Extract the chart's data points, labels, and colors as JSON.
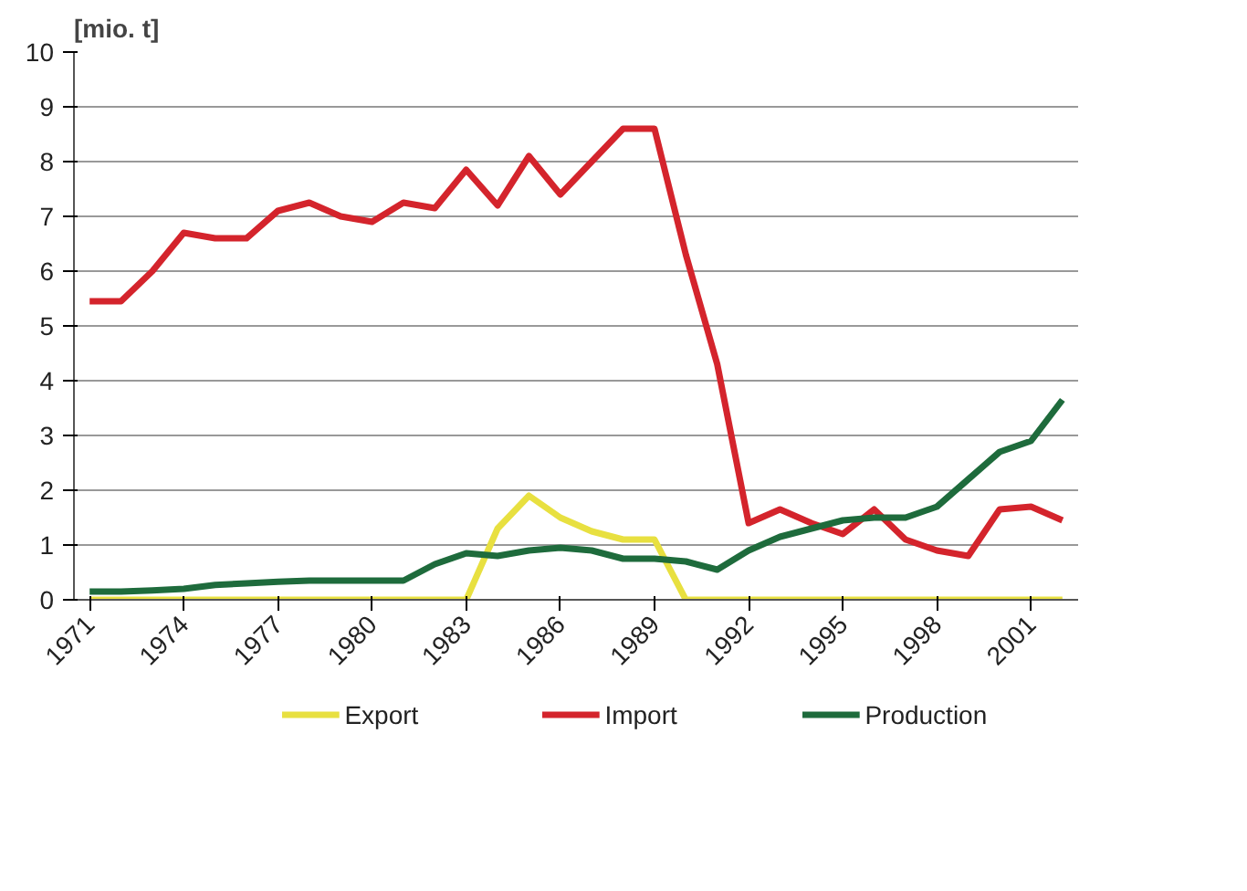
{
  "chart_data": {
    "type": "line",
    "ylabel": "[mio. t]",
    "x": [
      1971,
      1972,
      1973,
      1974,
      1975,
      1976,
      1977,
      1978,
      1979,
      1980,
      1981,
      1982,
      1983,
      1984,
      1985,
      1986,
      1987,
      1988,
      1989,
      1990,
      1991,
      1992,
      1993,
      1994,
      1995,
      1996,
      1997,
      1998,
      1999,
      2000,
      2001,
      2002
    ],
    "series": [
      {
        "name": "Export",
        "color": "#e8e040",
        "values": [
          0,
          0,
          0,
          0,
          0,
          0,
          0,
          0,
          0,
          0,
          0,
          0,
          0,
          1.3,
          1.9,
          1.5,
          1.25,
          1.1,
          1.1,
          0,
          0,
          0,
          0,
          0,
          0,
          0,
          0,
          0,
          0,
          0,
          0,
          0
        ]
      },
      {
        "name": "Import",
        "color": "#d4242c",
        "values": [
          5.45,
          5.45,
          6.0,
          6.7,
          6.6,
          6.6,
          7.1,
          7.25,
          7.0,
          6.9,
          7.25,
          7.15,
          7.85,
          7.2,
          8.1,
          7.4,
          8.0,
          8.6,
          8.6,
          6.3,
          4.3,
          1.4,
          1.65,
          1.4,
          1.2,
          1.65,
          1.1,
          0.9,
          0.8,
          1.65,
          1.7,
          1.45
        ]
      },
      {
        "name": "Production",
        "color": "#1e6b3c",
        "values": [
          0.15,
          0.15,
          0.17,
          0.2,
          0.27,
          0.3,
          0.33,
          0.35,
          0.35,
          0.35,
          0.35,
          0.65,
          0.85,
          0.8,
          0.9,
          0.95,
          0.9,
          0.75,
          0.75,
          0.7,
          0.55,
          0.9,
          1.15,
          1.3,
          1.45,
          1.5,
          1.5,
          1.7,
          2.2,
          2.7,
          2.9,
          3.65
        ]
      }
    ],
    "xlim": [
      1970.5,
      2002.5
    ],
    "xticks": [
      1971,
      1974,
      1977,
      1980,
      1983,
      1986,
      1989,
      1992,
      1995,
      1998,
      2001
    ],
    "ylim": [
      0,
      10
    ],
    "yticks": [
      0,
      1,
      2,
      3,
      4,
      5,
      6,
      7,
      8,
      9,
      10
    ],
    "grid": "y",
    "legend": "bottom",
    "marker": "none",
    "line_style": "solid"
  }
}
